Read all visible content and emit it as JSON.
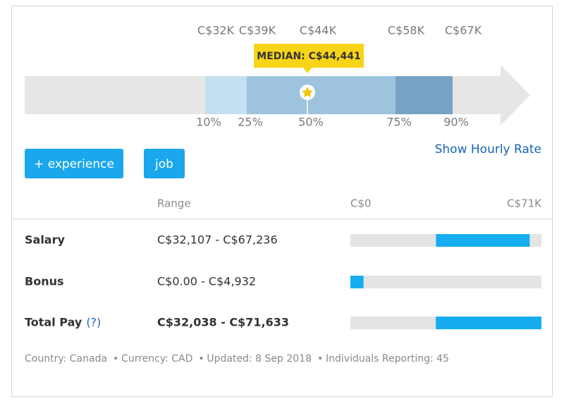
{
  "percentile_chart": {
    "tick_labels": [
      "C$32K",
      "C$39K",
      "C$44K",
      "C$58K",
      "C$67K"
    ],
    "percentiles": [
      "10%",
      "25%",
      "50%",
      "75%",
      "90%"
    ],
    "median_label": "MEDIAN: C$44,441"
  },
  "buttons": [
    "+ experience",
    "job"
  ],
  "link": "Show Hourly Rate",
  "table": {
    "header": {
      "range": "Range",
      "scale_min_label": "C$0",
      "scale_max_label": "C$71K"
    },
    "scale": [
      0,
      71633
    ],
    "rows": [
      {
        "label": "Salary",
        "range": "C$32,107 - C$67,236",
        "low": 32107,
        "high": 67236
      },
      {
        "label": "Bonus",
        "range": "C$0.00 - C$4,932",
        "low": 0,
        "high": 4932
      },
      {
        "label": "Total Pay",
        "help_marker": "(?)",
        "range": "C$32,038 - C$71,633",
        "low": 32038,
        "high": 71633
      }
    ]
  },
  "footer": [
    "Country: Canada",
    "Currency: CAD",
    "Updated: 8 Sep 2018",
    "Individuals Reporting: 45"
  ]
}
